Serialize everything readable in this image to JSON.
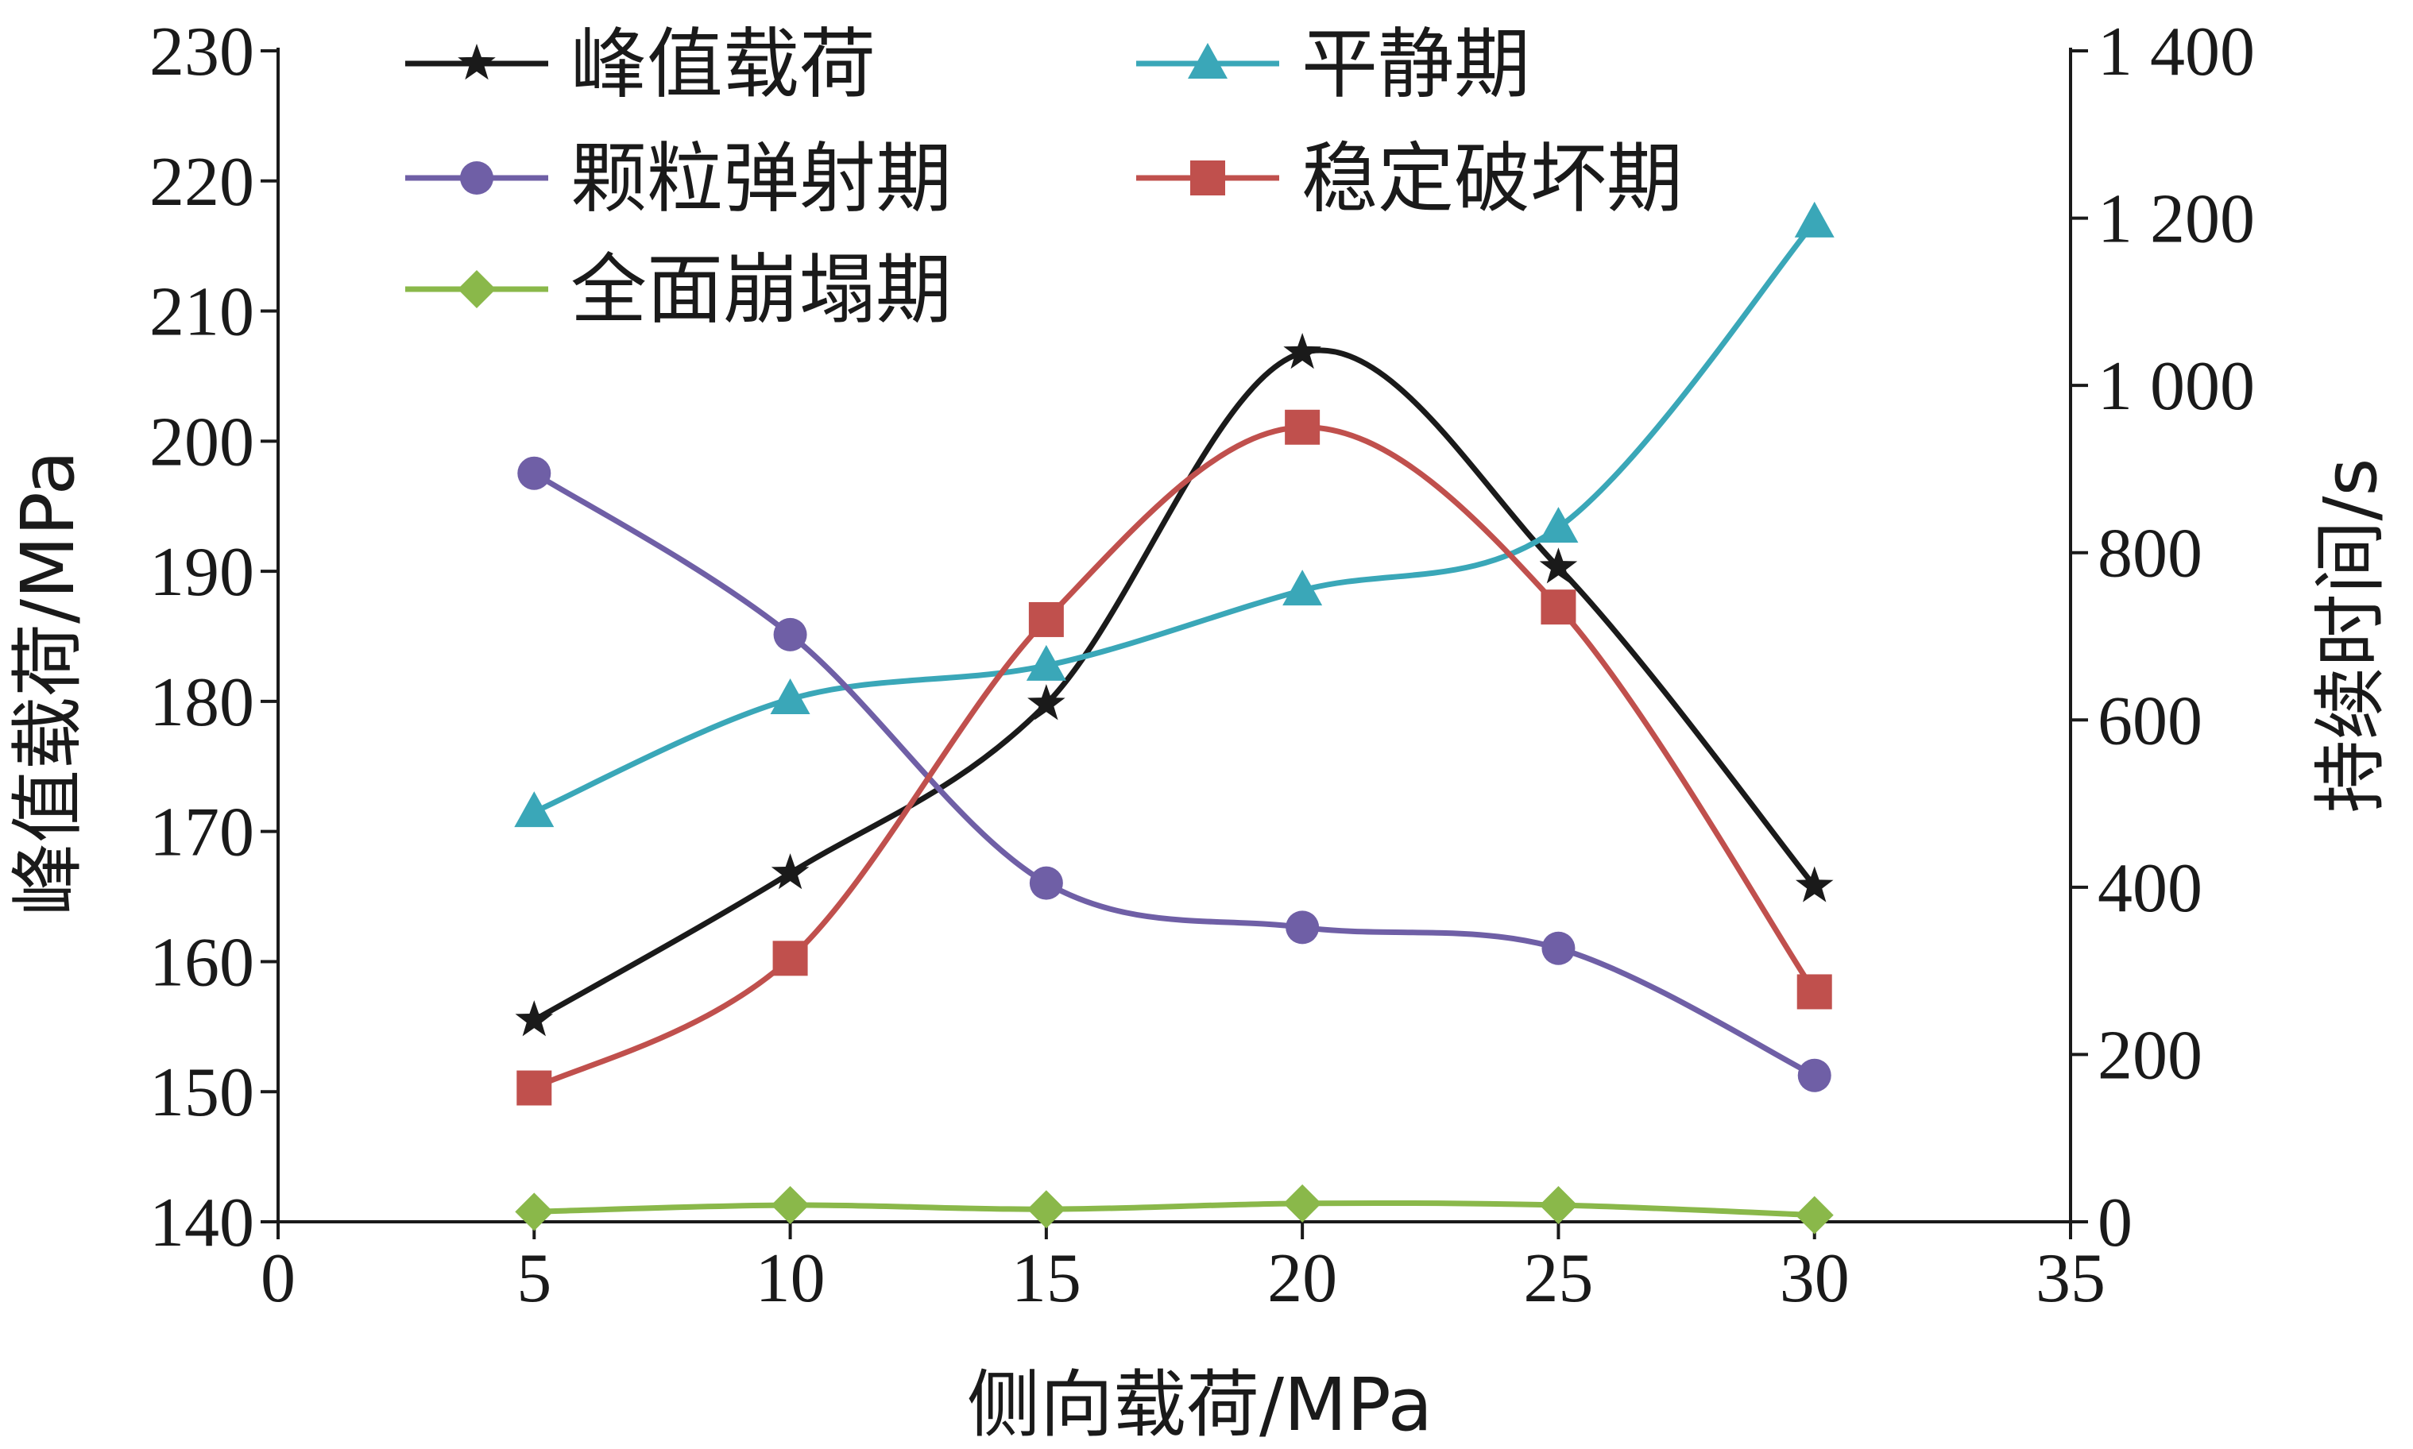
{
  "chart_data": {
    "type": "line",
    "xlabel": "侧向载荷/MPa",
    "ylabel_left": "峰值载荷/MPa",
    "ylabel_right": "持续时间/s",
    "xlim": [
      0,
      35
    ],
    "xticks": [
      "0",
      "5",
      "10",
      "15",
      "20",
      "25",
      "30",
      "35"
    ],
    "ylim_left": [
      140,
      230
    ],
    "yticks_left": [
      "140",
      "150",
      "160",
      "170",
      "180",
      "190",
      "200",
      "210",
      "220",
      "230"
    ],
    "ylim_right": [
      0,
      1400
    ],
    "yticks_right": [
      "0",
      "200",
      "400",
      "600",
      "800",
      "1 000",
      "1 200",
      "1 400"
    ],
    "grid": false,
    "legend_position": "top-left",
    "x": [
      5,
      10,
      15,
      20,
      25,
      30
    ],
    "series": [
      {
        "name": "峰值载荷",
        "axis": "left",
        "color": "#1a1a1a",
        "marker": "star",
        "values": [
          155.5,
          166.8,
          179.8,
          206.8,
          190.3,
          165.8
        ]
      },
      {
        "name": "平静期",
        "axis": "right",
        "color": "#3aa7b8",
        "marker": "triangle",
        "values": [
          490,
          625,
          665,
          755,
          830,
          1195
        ]
      },
      {
        "name": "颗粒弹射期",
        "axis": "right",
        "color": "#6f5fa6",
        "marker": "circle",
        "values": [
          895,
          702,
          405,
          352,
          327,
          175
        ]
      },
      {
        "name": "稳定破坏期",
        "axis": "right",
        "color": "#c0504d",
        "marker": "square",
        "values": [
          160,
          315,
          720,
          950,
          735,
          275
        ]
      },
      {
        "name": "全面崩塌期",
        "axis": "right",
        "color": "#8ab84a",
        "marker": "diamond",
        "values": [
          12,
          20,
          15,
          22,
          20,
          8
        ]
      }
    ]
  }
}
